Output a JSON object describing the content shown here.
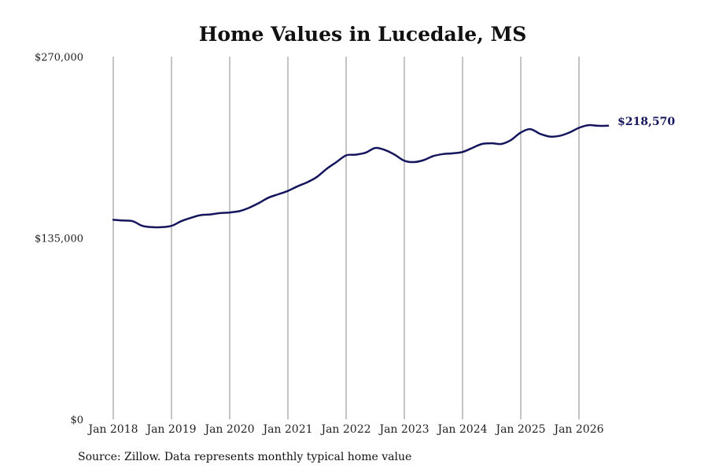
{
  "chart_data": {
    "type": "line",
    "title": "Home Values in Lucedale, MS",
    "xlabel": "",
    "ylabel": "",
    "ylim": [
      0,
      270000
    ],
    "xlim": [
      "2018-01",
      "2026-08"
    ],
    "y_ticks": [
      0,
      135000,
      270000
    ],
    "y_tick_labels": [
      "$0",
      "$135,000",
      "$270,000"
    ],
    "x_ticks": [
      "2018-01",
      "2019-01",
      "2020-01",
      "2021-01",
      "2022-01",
      "2023-01",
      "2024-01",
      "2025-01",
      "2026-01"
    ],
    "x_tick_labels": [
      "Jan 2018",
      "Jan 2019",
      "Jan 2020",
      "Jan 2021",
      "Jan 2022",
      "Jan 2023",
      "Jan 2024",
      "Jan 2025",
      "Jan 2026"
    ],
    "grid": "vertical lines at x ticks",
    "legend": "none",
    "line_color": "#15155e",
    "series": [
      {
        "x": [
          "2018-01",
          "2018-03",
          "2018-05",
          "2018-07",
          "2018-09",
          "2018-11",
          "2019-01",
          "2019-03",
          "2019-05",
          "2019-07",
          "2019-09",
          "2019-11",
          "2020-01",
          "2020-03",
          "2020-05",
          "2020-07",
          "2020-09",
          "2020-11",
          "2021-01",
          "2021-03",
          "2021-05",
          "2021-07",
          "2021-09",
          "2021-11",
          "2022-01",
          "2022-03",
          "2022-05",
          "2022-07",
          "2022-09",
          "2022-11",
          "2023-01",
          "2023-03",
          "2023-05",
          "2023-07",
          "2023-09",
          "2023-11",
          "2024-01",
          "2024-03",
          "2024-05",
          "2024-07",
          "2024-09",
          "2024-11",
          "2025-01",
          "2025-03",
          "2025-05",
          "2025-07",
          "2025-09",
          "2025-11",
          "2026-01",
          "2026-03",
          "2026-05",
          "2026-07"
        ],
        "values": [
          148500,
          148000,
          147500,
          144000,
          143000,
          143000,
          144000,
          147500,
          150000,
          152000,
          152500,
          153500,
          154000,
          155000,
          157500,
          161000,
          165000,
          167500,
          170000,
          173500,
          176500,
          180500,
          186500,
          191500,
          196500,
          197000,
          198500,
          202000,
          200500,
          197000,
          192500,
          191500,
          193000,
          196000,
          197500,
          198000,
          199000,
          202000,
          205000,
          205500,
          205000,
          208000,
          213500,
          216000,
          212500,
          210500,
          211000,
          213500,
          217000,
          219000,
          218500,
          218570
        ]
      }
    ],
    "end_label": "$218,570"
  },
  "source_note": "Source: Zillow. Data represents monthly typical home value"
}
